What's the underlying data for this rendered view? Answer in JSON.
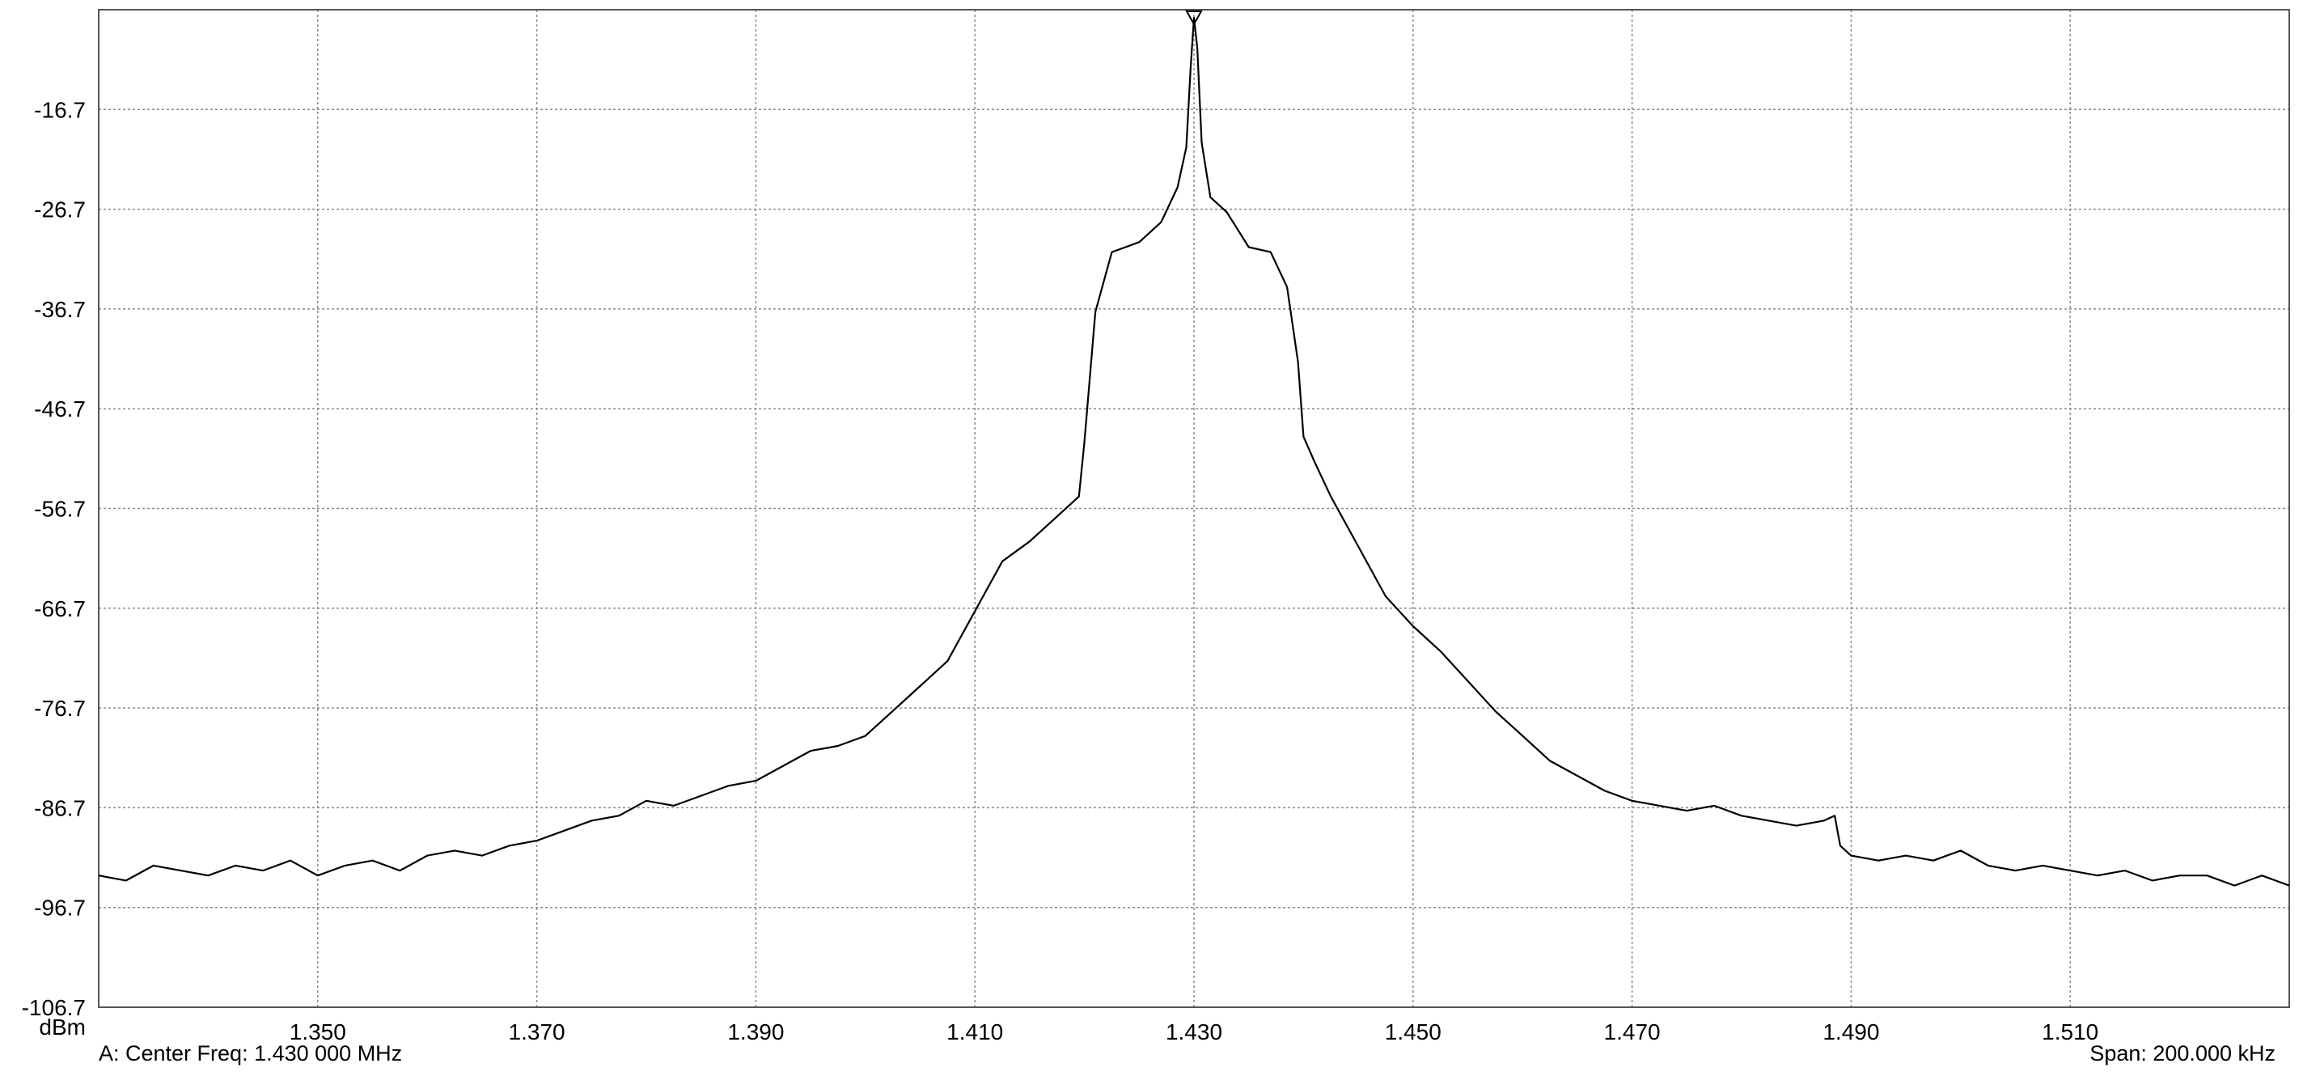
{
  "chart_data": {
    "type": "line",
    "title": "",
    "xlabel": "",
    "ylabel": "dBm",
    "x_ticks": [
      "1.350",
      "1.370",
      "1.390",
      "1.410",
      "1.430",
      "1.450",
      "1.470",
      "1.490",
      "1.510"
    ],
    "x_tick_values": [
      1.35,
      1.37,
      1.39,
      1.41,
      1.43,
      1.45,
      1.47,
      1.49,
      1.51
    ],
    "y_ticks": [
      "-16.7",
      "-26.7",
      "-36.7",
      "-46.7",
      "-56.7",
      "-66.7",
      "-76.7",
      "-86.7",
      "-96.7",
      "-106.7"
    ],
    "y_tick_values": [
      -16.7,
      -26.7,
      -36.7,
      -46.7,
      -56.7,
      -66.7,
      -76.7,
      -86.7,
      -96.7,
      -106.7
    ],
    "xlim": [
      1.33,
      1.53
    ],
    "ylim": [
      -106.7,
      -6.7
    ],
    "grid": true,
    "grid_style": "dotted",
    "series": [
      {
        "color": "#000000",
        "x": [
          1.33,
          1.3325,
          1.335,
          1.3375,
          1.34,
          1.3425,
          1.345,
          1.3475,
          1.35,
          1.3525,
          1.355,
          1.3575,
          1.36,
          1.3625,
          1.365,
          1.3675,
          1.37,
          1.3725,
          1.375,
          1.3775,
          1.38,
          1.3825,
          1.385,
          1.3875,
          1.39,
          1.3925,
          1.395,
          1.3975,
          1.4,
          1.4025,
          1.405,
          1.4075,
          1.41,
          1.4125,
          1.415,
          1.4175,
          1.4195,
          1.42,
          1.421,
          1.4225,
          1.425,
          1.427,
          1.4285,
          1.4293,
          1.4297,
          1.43,
          1.4303,
          1.4307,
          1.4315,
          1.433,
          1.435,
          1.437,
          1.4385,
          1.4395,
          1.44,
          1.441,
          1.4425,
          1.445,
          1.4475,
          1.45,
          1.4525,
          1.455,
          1.4575,
          1.46,
          1.4625,
          1.465,
          1.4675,
          1.47,
          1.4725,
          1.475,
          1.4775,
          1.48,
          1.4825,
          1.485,
          1.4875,
          1.4885,
          1.489,
          1.49,
          1.4925,
          1.495,
          1.4975,
          1.5,
          1.5025,
          1.505,
          1.5075,
          1.51,
          1.5125,
          1.515,
          1.5175,
          1.52,
          1.5225,
          1.525,
          1.5275,
          1.53
        ],
        "y": [
          -93.5,
          -94.0,
          -92.5,
          -93.0,
          -93.5,
          -92.5,
          -93.0,
          -92.0,
          -93.5,
          -92.5,
          -92.0,
          -93.0,
          -91.5,
          -91.0,
          -91.5,
          -90.5,
          -90.0,
          -89.0,
          -88.0,
          -87.5,
          -86.0,
          -86.5,
          -85.5,
          -84.5,
          -84.0,
          -82.5,
          -81.0,
          -80.5,
          -79.5,
          -77.0,
          -74.5,
          -72.0,
          -67.0,
          -62.0,
          -60.0,
          -57.5,
          -55.5,
          -50.0,
          -37.0,
          -31.0,
          -30.0,
          -28.0,
          -24.5,
          -20.5,
          -12.5,
          -7.5,
          -10.5,
          -20.0,
          -25.5,
          -27.0,
          -30.5,
          -31.0,
          -34.5,
          -42.0,
          -49.5,
          -52.0,
          -55.5,
          -60.5,
          -65.5,
          -68.5,
          -71.0,
          -74.0,
          -77.0,
          -79.5,
          -82.0,
          -83.5,
          -85.0,
          -86.0,
          -86.5,
          -87.0,
          -86.5,
          -87.5,
          -88.0,
          -88.5,
          -88.0,
          -87.5,
          -90.5,
          -91.5,
          -92.0,
          -91.5,
          -92.0,
          -91.0,
          -92.5,
          -93.0,
          -92.5,
          -93.0,
          -93.5,
          -93.0,
          -94.0,
          -93.5,
          -93.5,
          -94.5,
          -93.5,
          -94.5
        ]
      }
    ],
    "marker": {
      "x": 1.43,
      "y": -7.5,
      "shape": "triangle-down"
    }
  },
  "status": {
    "left": "A: Center Freq: 1.430 000 MHz",
    "right": "Span: 200.000 kHz"
  }
}
